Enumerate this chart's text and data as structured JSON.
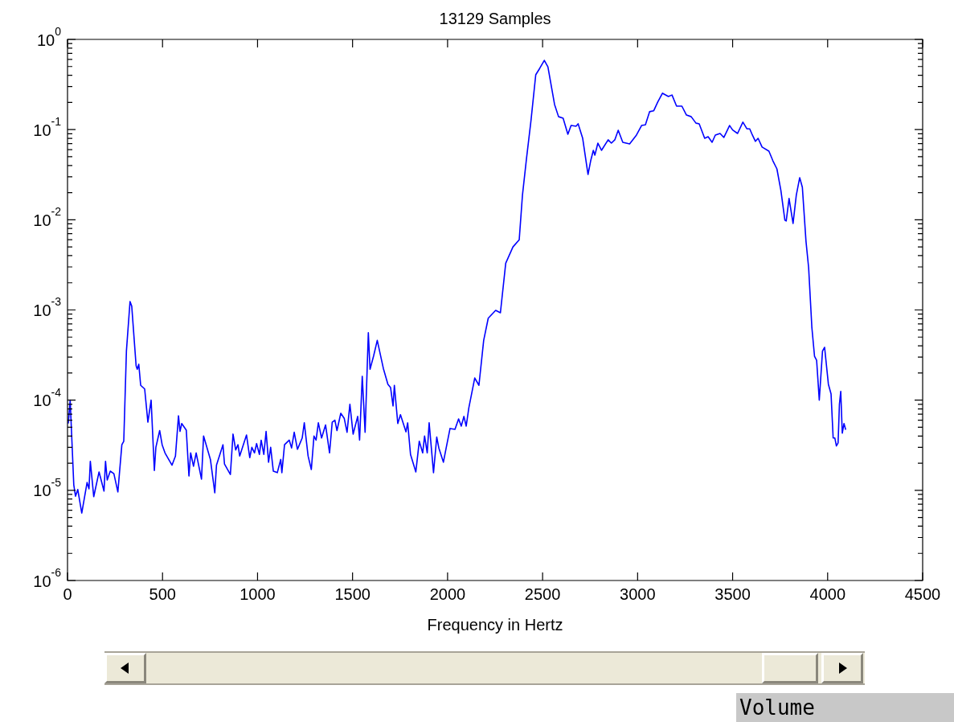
{
  "chart_data": {
    "type": "line",
    "title": "13129 Samples",
    "xlabel": "Frequency in Hertz",
    "log": "y",
    "grid": false,
    "xlim": [
      0,
      4500
    ],
    "xticks": [
      0,
      500,
      1000,
      1500,
      2000,
      2500,
      3000,
      3500,
      4000,
      4500
    ],
    "ylim": [
      1e-06,
      1
    ],
    "yticks": [
      {
        "value": 1e-06,
        "label": "10$^{-6}$"
      },
      {
        "value": 2e-06,
        "label": null
      },
      {
        "value": 3e-06,
        "label": null
      },
      {
        "value": 4e-06,
        "label": null
      },
      {
        "value": 5e-06,
        "label": null
      },
      {
        "value": 6e-06,
        "label": null
      },
      {
        "value": 7e-06,
        "label": null
      },
      {
        "value": 8e-06,
        "label": null
      },
      {
        "value": 9e-06,
        "label": null
      },
      {
        "value": 1e-05,
        "label": "10$^{-5}$"
      },
      {
        "value": 2e-05,
        "label": null
      },
      {
        "value": 3e-05,
        "label": null
      },
      {
        "value": 4e-05,
        "label": null
      },
      {
        "value": 5e-05,
        "label": null
      },
      {
        "value": 6e-05,
        "label": null
      },
      {
        "value": 7e-05,
        "label": null
      },
      {
        "value": 8e-05,
        "label": null
      },
      {
        "value": 9e-05,
        "label": null
      },
      {
        "value": 0.0001,
        "label": "10$^{-4}$"
      },
      {
        "value": 0.0002,
        "label": null
      },
      {
        "value": 0.0003,
        "label": null
      },
      {
        "value": 0.0004,
        "label": null
      },
      {
        "value": 0.0005,
        "label": null
      },
      {
        "value": 0.0006,
        "label": null
      },
      {
        "value": 0.0007,
        "label": null
      },
      {
        "value": 0.0008,
        "label": null
      },
      {
        "value": 0.0009,
        "label": null
      },
      {
        "value": 0.001,
        "label": "10$^{-3}$"
      },
      {
        "value": 0.002,
        "label": null
      },
      {
        "value": 0.003,
        "label": null
      },
      {
        "value": 0.004,
        "label": null
      },
      {
        "value": 0.005,
        "label": null
      },
      {
        "value": 0.006,
        "label": null
      },
      {
        "value": 0.007,
        "label": null
      },
      {
        "value": 0.008,
        "label": null
      },
      {
        "value": 0.009,
        "label": null
      },
      {
        "value": 0.01,
        "label": "10$^{-2}$"
      },
      {
        "value": 0.02,
        "label": null
      },
      {
        "value": 0.03,
        "label": null
      },
      {
        "value": 0.04,
        "label": null
      },
      {
        "value": 0.05,
        "label": null
      },
      {
        "value": 0.06,
        "label": null
      },
      {
        "value": 0.07,
        "label": null
      },
      {
        "value": 0.08,
        "label": null
      },
      {
        "value": 0.09,
        "label": null
      },
      {
        "value": 0.1,
        "label": "10$^{-1}$"
      },
      {
        "value": 0.2,
        "label": null
      },
      {
        "value": 0.3,
        "label": null
      },
      {
        "value": 0.4,
        "label": null
      },
      {
        "value": 0.5,
        "label": null
      },
      {
        "value": 0.6,
        "label": null
      },
      {
        "value": 0.7,
        "label": null
      },
      {
        "value": 0.8,
        "label": null
      },
      {
        "value": 0.9,
        "label": null
      },
      {
        "value": 1,
        "label": "10$^{0}$"
      }
    ],
    "annotations": [
      "Volume"
    ],
    "series": [
      {
        "color": "#0000ff",
        "x": [
          4,
          14,
          33,
          42,
          54,
          75,
          103,
          113,
          120,
          138,
          166,
          192,
          200,
          209,
          225,
          244,
          265,
          286,
          296,
          310,
          329,
          338,
          361,
          367,
          375,
          385,
          406,
          423,
          440,
          457,
          465,
          485,
          498,
          513,
          550,
          568,
          584,
          592,
          601,
          625,
          639,
          648,
          663,
          677,
          705,
          716,
          752,
          775,
          784,
          818,
          826,
          857,
          871,
          885,
          897,
          906,
          942,
          959,
          970,
          984,
          995,
          1010,
          1019,
          1033,
          1045,
          1058,
          1069,
          1083,
          1104,
          1122,
          1128,
          1142,
          1167,
          1179,
          1193,
          1210,
          1235,
          1246,
          1266,
          1283,
          1297,
          1308,
          1320,
          1337,
          1358,
          1379,
          1393,
          1407,
          1418,
          1438,
          1456,
          1471,
          1486,
          1503,
          1527,
          1537,
          1551,
          1566,
          1583,
          1592,
          1611,
          1630,
          1662,
          1686,
          1700,
          1713,
          1720,
          1738,
          1752,
          1781,
          1790,
          1805,
          1833,
          1851,
          1869,
          1879,
          1893,
          1903,
          1926,
          1943,
          1954,
          1978,
          1992,
          2013,
          2039,
          2058,
          2072,
          2086,
          2098,
          2112,
          2143,
          2165,
          2190,
          2214,
          2253,
          2278,
          2306,
          2344,
          2377,
          2394,
          2415,
          2439,
          2464,
          2485,
          2509,
          2528,
          2563,
          2584,
          2608,
          2633,
          2650,
          2676,
          2687,
          2711,
          2739,
          2753,
          2767,
          2775,
          2791,
          2810,
          2845,
          2862,
          2880,
          2898,
          2922,
          2958,
          2994,
          3021,
          3041,
          3063,
          3085,
          3106,
          3131,
          3162,
          3181,
          3205,
          3233,
          3257,
          3282,
          3307,
          3324,
          3353,
          3371,
          3392,
          3409,
          3434,
          3454,
          3484,
          3500,
          3526,
          3554,
          3575,
          3590,
          3604,
          3620,
          3634,
          3655,
          3691,
          3712,
          3733,
          3754,
          3775,
          3782,
          3797,
          3818,
          3835,
          3853,
          3867,
          3886,
          3900,
          3917,
          3931,
          3942,
          3956,
          3973,
          3984,
          4004,
          4018,
          4029,
          4038,
          4046,
          4055,
          4062,
          4069,
          4077,
          4086,
          4095
        ],
        "values": [
          5.5e-05,
          0.0001,
          1.15e-05,
          8.6e-06,
          1.02e-05,
          5.6e-06,
          1.22e-05,
          1.04e-05,
          2.1e-05,
          8.5e-06,
          1.6e-05,
          9.8e-06,
          2.1e-05,
          1.3e-05,
          1.63e-05,
          1.53e-05,
          9.6e-06,
          3.2e-05,
          3.5e-05,
          0.00035,
          0.00124,
          0.0011,
          0.00024,
          0.00022,
          0.00025,
          0.000146,
          0.000133,
          5.7e-05,
          0.0001,
          1.66e-05,
          3e-05,
          4.6e-05,
          3.2e-05,
          2.6e-05,
          1.9e-05,
          2.4e-05,
          6.7e-05,
          4.5e-05,
          5.5e-05,
          4.65e-05,
          1.44e-05,
          2.6e-05,
          1.85e-05,
          2.6e-05,
          1.33e-05,
          4e-05,
          2.2e-05,
          9.4e-06,
          1.9e-05,
          3.2e-05,
          1.96e-05,
          1.5e-05,
          4.2e-05,
          2.8e-05,
          3.2e-05,
          2.4e-05,
          4.1e-05,
          2.3e-05,
          3e-05,
          2.6e-05,
          3.3e-05,
          2.5e-05,
          3.6e-05,
          2.5e-05,
          4.5e-05,
          2.05e-05,
          3e-05,
          1.63e-05,
          1.57e-05,
          2.2e-05,
          1.57e-05,
          3.2e-05,
          3.6e-05,
          2.95e-05,
          4.4e-05,
          2.85e-05,
          3.8e-05,
          5.6e-05,
          2.4e-05,
          1.7e-05,
          4e-05,
          3.6e-05,
          5.6e-05,
          3.8e-05,
          5.3e-05,
          2.6e-05,
          5.7e-05,
          6e-05,
          4.6e-05,
          7.15e-05,
          6.3e-05,
          4.4e-05,
          9e-05,
          4.2e-05,
          6.6e-05,
          3.6e-05,
          0.000184,
          4.4e-05,
          0.00056,
          0.00022,
          0.00031,
          0.00046,
          0.000225,
          0.00015,
          0.000138,
          8.6e-05,
          0.000146,
          5.5e-05,
          6.9e-05,
          4.45e-05,
          5.6e-05,
          2.5e-05,
          1.6e-05,
          3.5e-05,
          2.6e-05,
          4e-05,
          2.6e-05,
          5.6e-05,
          1.57e-05,
          3.9e-05,
          2.95e-05,
          2.05e-05,
          2.9e-05,
          4.85e-05,
          4.75e-05,
          6.2e-05,
          5.15e-05,
          6.6e-05,
          5.15e-05,
          8.25e-05,
          0.000176,
          0.000146,
          0.00046,
          0.00081,
          0.00099,
          0.00093,
          0.0033,
          0.005,
          0.006,
          0.0187,
          0.047,
          0.126,
          0.405,
          0.478,
          0.586,
          0.497,
          0.19,
          0.139,
          0.134,
          0.0887,
          0.111,
          0.109,
          0.116,
          0.08,
          0.0318,
          0.045,
          0.0589,
          0.052,
          0.0708,
          0.0589,
          0.077,
          0.0708,
          0.077,
          0.0984,
          0.0723,
          0.0694,
          0.087,
          0.111,
          0.113,
          0.158,
          0.162,
          0.202,
          0.253,
          0.233,
          0.242,
          0.182,
          0.182,
          0.145,
          0.139,
          0.118,
          0.116,
          0.08,
          0.0835,
          0.0723,
          0.087,
          0.0906,
          0.0818,
          0.111,
          0.099,
          0.0906,
          0.121,
          0.102,
          0.102,
          0.087,
          0.074,
          0.08,
          0.064,
          0.0577,
          0.045,
          0.0367,
          0.0211,
          0.0099,
          0.0097,
          0.0172,
          0.0091,
          0.0187,
          0.0293,
          0.0229,
          0.0058,
          0.00294,
          0.00064,
          0.000307,
          0.000277,
          0.0001,
          0.00035,
          0.000385,
          0.00015,
          0.000117,
          3.8e-05,
          3.8e-05,
          3.1e-05,
          3.35e-05,
          9e-05,
          0.000125,
          4.3e-05,
          5.5e-05,
          4.7e-05
        ]
      }
    ]
  }
}
